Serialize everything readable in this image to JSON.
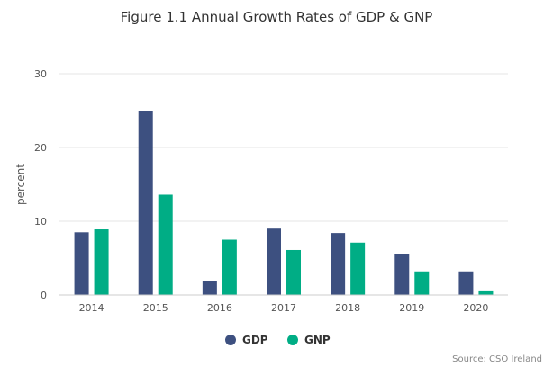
{
  "chart_data": {
    "type": "bar",
    "title": "Figure 1.1 Annual Growth Rates of GDP & GNP",
    "xlabel": "",
    "ylabel": "percent",
    "categories": [
      "2014",
      "2015",
      "2016",
      "2017",
      "2018",
      "2019",
      "2020"
    ],
    "series": [
      {
        "name": "GDP",
        "color": "#3d5080",
        "values": [
          8.5,
          25.0,
          1.9,
          9.0,
          8.4,
          5.5,
          3.2
        ]
      },
      {
        "name": "GNP",
        "color": "#00ad85",
        "values": [
          8.9,
          13.6,
          7.5,
          6.1,
          7.1,
          3.2,
          0.5
        ]
      }
    ],
    "ylim": [
      0,
      30
    ],
    "yticks": [
      "0",
      "10",
      "20",
      "30"
    ],
    "grid": true,
    "legend": "bottom-center",
    "source": "Source: CSO Ireland"
  }
}
